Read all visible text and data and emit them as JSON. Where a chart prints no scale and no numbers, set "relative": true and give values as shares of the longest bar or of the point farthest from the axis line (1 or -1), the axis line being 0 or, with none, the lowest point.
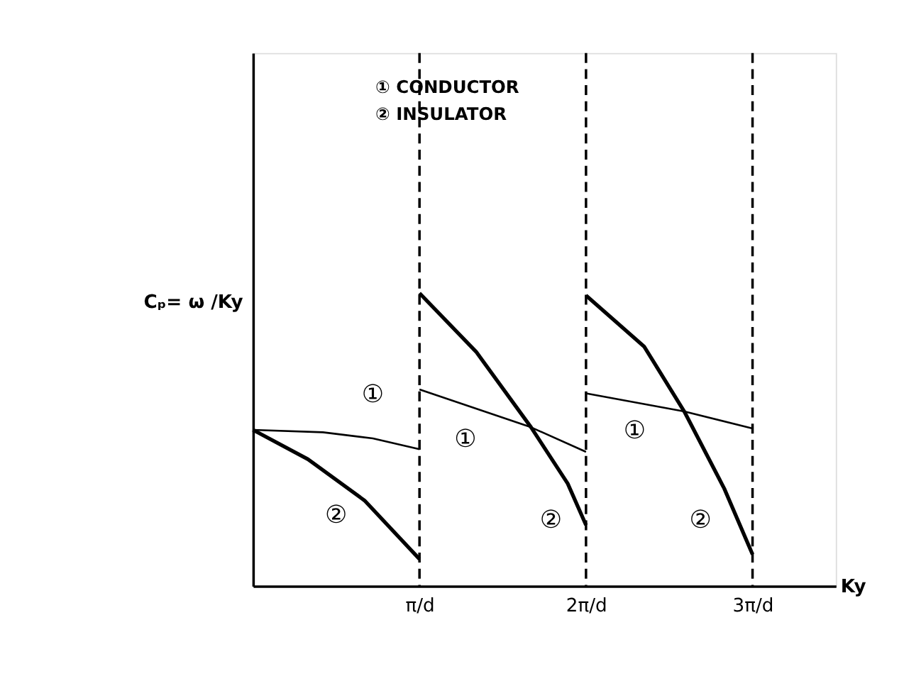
{
  "chart_data": {
    "type": "line",
    "relative": true,
    "ylabel": "Cₚ= ω /Ky",
    "xlabel": "Ky",
    "xlim": [
      0,
      3.5
    ],
    "xticks": [
      {
        "value": 1,
        "label": "π/d"
      },
      {
        "value": 2,
        "label": "2π/d"
      },
      {
        "value": 3,
        "label": "3π/d"
      }
    ],
    "series": [
      {
        "color": "#000000",
        "x": [
          0,
          0.42,
          0.72,
          1.0
        ],
        "values": [
          0.533,
          0.525,
          0.504,
          0.467
        ]
      },
      {
        "color": "#000000",
        "x": [
          0,
          0.33,
          0.67,
          1.0
        ],
        "values": [
          0.533,
          0.433,
          0.292,
          0.092
        ]
      },
      {
        "color": "#000000",
        "x": [
          1.0,
          1.67,
          2.0
        ],
        "values": [
          0.671,
          0.542,
          0.458
        ]
      },
      {
        "color": "#000000",
        "x": [
          1.0,
          1.34,
          1.67,
          1.89,
          2.0
        ],
        "values": [
          1.0,
          0.8,
          0.542,
          0.35,
          0.208
        ]
      },
      {
        "color": "#000000",
        "x": [
          2.0,
          2.59,
          3.0
        ],
        "values": [
          0.658,
          0.596,
          0.538
        ]
      },
      {
        "color": "#000000",
        "x": [
          2.0,
          2.35,
          2.59,
          2.83,
          3.0
        ],
        "values": [
          0.992,
          0.817,
          0.596,
          0.333,
          0.108
        ]
      }
    ],
    "ref_lines": [
      {
        "axis": "x",
        "value": 1,
        "line_style": "dashed"
      },
      {
        "axis": "x",
        "value": 2,
        "line_style": "dashed"
      },
      {
        "axis": "x",
        "value": 3,
        "line_style": "dashed"
      }
    ],
    "annotations": [
      "① CONDUCTOR",
      "② INSULATOR",
      "①",
      "②",
      "①",
      "②",
      "①",
      "②"
    ]
  }
}
